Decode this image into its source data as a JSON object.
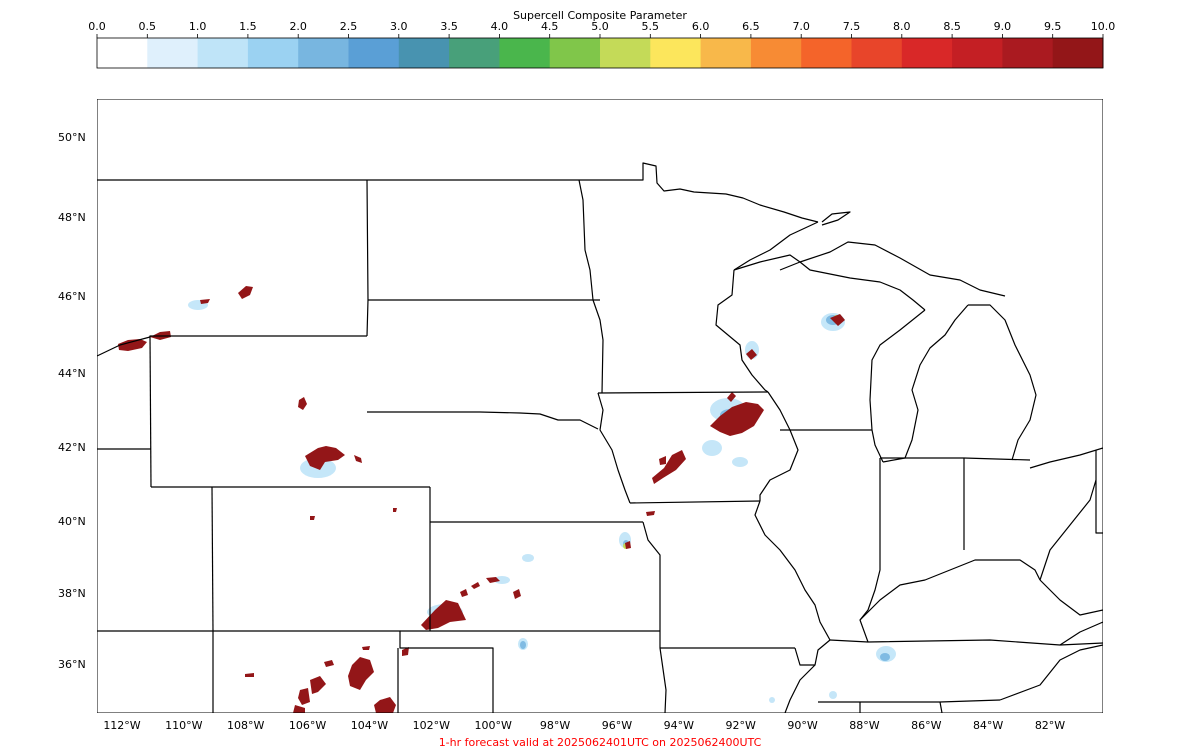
{
  "colorbar": {
    "title": "Supercell Composite Parameter",
    "ticks": [
      "0.0",
      "0.5",
      "1.0",
      "1.5",
      "2.0",
      "2.5",
      "3.0",
      "3.5",
      "4.0",
      "4.5",
      "5.0",
      "5.5",
      "6.0",
      "6.5",
      "7.0",
      "7.5",
      "8.0",
      "8.5",
      "9.0",
      "9.5",
      "10.0"
    ],
    "colors": [
      "#ffffff",
      "#dff0fc",
      "#bfe4f8",
      "#9bd2f2",
      "#78b6e0",
      "#5a9fd6",
      "#4893b0",
      "#48a07a",
      "#4ab64c",
      "#80c64a",
      "#c4da58",
      "#fce65c",
      "#f8b84a",
      "#f78b34",
      "#f4642a",
      "#e8452a",
      "#d92828",
      "#c41f24",
      "#aa1a20",
      "#931618"
    ]
  },
  "map": {
    "lat_labels": [
      "50°N",
      "48°N",
      "46°N",
      "44°N",
      "42°N",
      "40°N",
      "38°N",
      "36°N"
    ],
    "lon_labels": [
      "112°W",
      "110°W",
      "108°W",
      "106°W",
      "104°W",
      "102°W",
      "100°W",
      "98°W",
      "96°W",
      "94°W",
      "92°W",
      "90°W",
      "88°W",
      "86°W",
      "84°W",
      "82°W"
    ]
  },
  "footer": "1-hr forecast valid at 2025062401UTC on 2025062400UTC"
}
